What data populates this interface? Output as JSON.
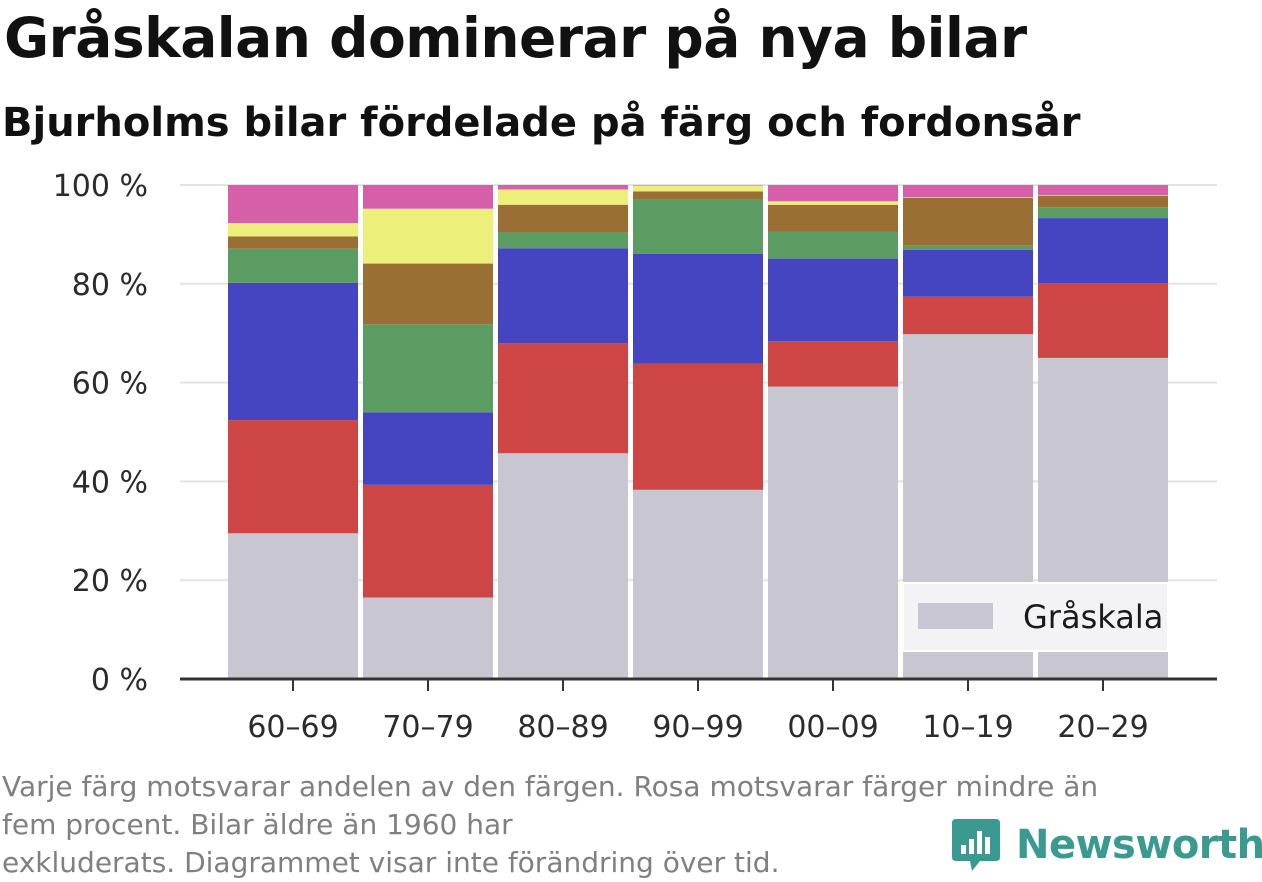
{
  "title": "Gråskalan dominerar på nya bilar",
  "subtitle": "Bjurholms bilar fördelade på färg och fordonsår",
  "footnote": {
    "line1": "Varje färg motsvarar andelen av den färgen. Rosa motsvarar färger mindre än",
    "line2": "fem procent. Bilar äldre än 1960 har",
    "line3": "exkluderats. Diagrammet visar inte förändring över tid."
  },
  "brand": {
    "name": "Newsworthy",
    "logo_icon": "newsworthy-logo-icon",
    "color": "#3a9a8f"
  },
  "chart_data": {
    "type": "bar",
    "stacked": true,
    "categories": [
      "60–69",
      "70–79",
      "80–89",
      "90–99",
      "00–09",
      "10–19",
      "20–29"
    ],
    "y_ticks": [
      "0 %",
      "20 %",
      "40 %",
      "60 %",
      "80 %",
      "100 %"
    ],
    "ylim": [
      0,
      100
    ],
    "grid": true,
    "legend": {
      "position": "bottom-right",
      "entries": [
        "Gråskala"
      ]
    },
    "series": [
      {
        "name": "Gråskala",
        "color": "#c8c7d1",
        "values": [
          29.5,
          16.5,
          45.7,
          38.3,
          59.2,
          69.8,
          65.0
        ]
      },
      {
        "color": "#cd4545",
        "values": [
          22.9,
          22.8,
          22.3,
          25.5,
          9.2,
          7.6,
          15.1
        ]
      },
      {
        "color": "#4545c1",
        "values": [
          27.8,
          14.7,
          19.2,
          22.3,
          16.7,
          9.5,
          13.2
        ]
      },
      {
        "color": "#5b9c62",
        "values": [
          6.9,
          17.8,
          3.2,
          10.9,
          5.4,
          0.8,
          2.2
        ]
      },
      {
        "color": "#9a6f34",
        "values": [
          2.5,
          12.3,
          5.6,
          1.7,
          5.5,
          9.7,
          2.3
        ]
      },
      {
        "color": "#ecef7a",
        "values": [
          2.7,
          11.1,
          3.1,
          1.2,
          0.7,
          0.1,
          0.1
        ]
      },
      {
        "color": "#d55fa9",
        "values": [
          7.7,
          4.8,
          0.9,
          0.1,
          3.3,
          2.5,
          2.1
        ]
      }
    ]
  }
}
